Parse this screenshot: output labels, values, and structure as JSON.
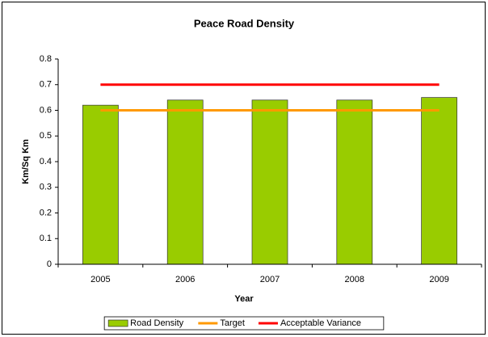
{
  "chart_data": {
    "type": "bar",
    "title": "Peace Road Density",
    "x_label": "Year",
    "y_label": "Km/Sq Km",
    "categories": [
      "2005",
      "2006",
      "2007",
      "2008",
      "2009"
    ],
    "series": [
      {
        "name": "Road Density",
        "type": "bar",
        "color": "#99cc00",
        "values": [
          0.62,
          0.64,
          0.64,
          0.64,
          0.65
        ]
      },
      {
        "name": "Target",
        "type": "line",
        "color": "#ff9900",
        "values": [
          0.6,
          0.6,
          0.6,
          0.6,
          0.6
        ]
      },
      {
        "name": "Acceptable Variance",
        "type": "line",
        "color": "#ff0000",
        "values": [
          0.7,
          0.7,
          0.7,
          0.7,
          0.7
        ]
      }
    ],
    "ylim": [
      0,
      0.8
    ],
    "yticks": [
      0,
      0.1,
      0.2,
      0.3,
      0.4,
      0.5,
      0.6,
      0.7,
      0.8
    ],
    "grid": false,
    "legend": "bottom"
  }
}
